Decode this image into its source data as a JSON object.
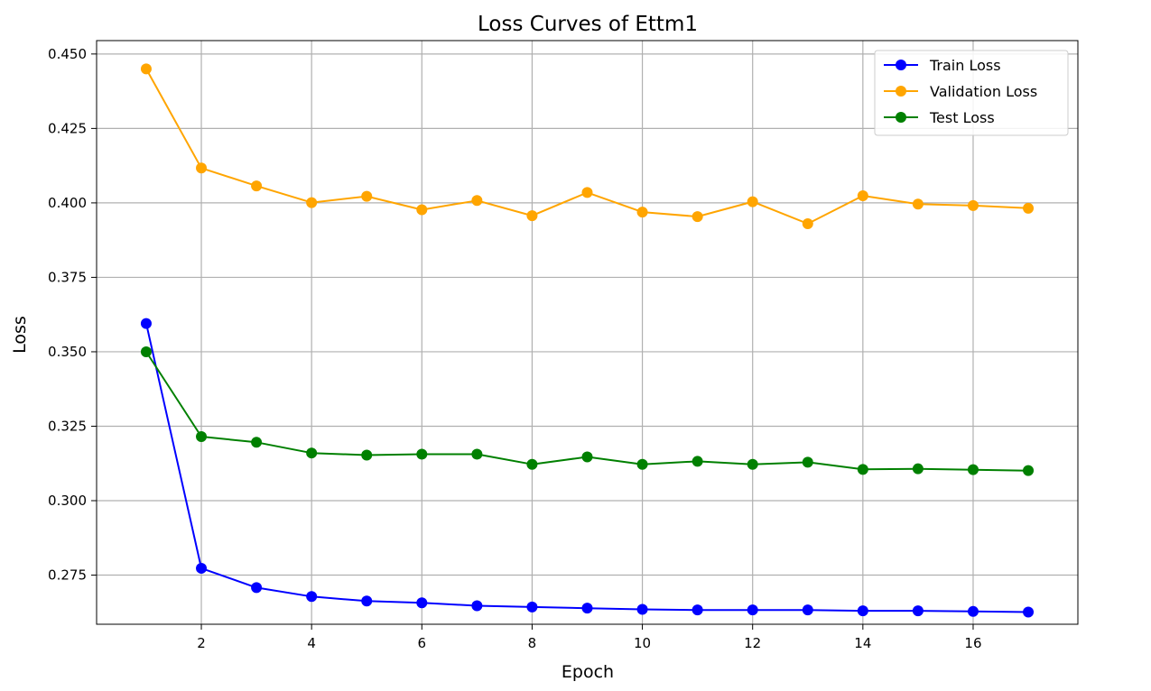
{
  "chart_data": {
    "type": "line",
    "title": "Loss Curves of Ettm1",
    "xlabel": "Epoch",
    "ylabel": "Loss",
    "x": [
      1,
      2,
      3,
      4,
      5,
      6,
      7,
      8,
      9,
      10,
      11,
      12,
      13,
      14,
      15,
      16,
      17
    ],
    "xticks": [
      2,
      4,
      6,
      8,
      10,
      12,
      14,
      16
    ],
    "xtick_labels": [
      "2",
      "4",
      "6",
      "8",
      "10",
      "12",
      "14",
      "16"
    ],
    "yticks": [
      0.275,
      0.3,
      0.325,
      0.35,
      0.375,
      0.4,
      0.425,
      0.45
    ],
    "ytick_labels": [
      "0.275",
      "0.300",
      "0.325",
      "0.350",
      "0.375",
      "0.400",
      "0.425",
      "0.450"
    ],
    "xlim": [
      0.1,
      17.9
    ],
    "ylim": [
      0.2585,
      0.4545
    ],
    "grid": true,
    "legend_position": "top-right",
    "series": [
      {
        "name": "Train Loss",
        "color": "#0000ff",
        "marker": "circle",
        "values": [
          0.3595,
          0.2773,
          0.2708,
          0.2678,
          0.2663,
          0.2657,
          0.2647,
          0.2643,
          0.2639,
          0.2635,
          0.2633,
          0.2633,
          0.2633,
          0.263,
          0.263,
          0.2628,
          0.2626
        ]
      },
      {
        "name": "Validation Loss",
        "color": "#ffa500",
        "marker": "circle",
        "values": [
          0.445,
          0.4117,
          0.4057,
          0.4001,
          0.4022,
          0.3977,
          0.4008,
          0.3957,
          0.4035,
          0.3969,
          0.3954,
          0.4004,
          0.393,
          0.4024,
          0.3996,
          0.3991,
          0.3982
        ]
      },
      {
        "name": "Test Loss",
        "color": "#008000",
        "marker": "circle",
        "values": [
          0.35,
          0.3215,
          0.3196,
          0.316,
          0.3153,
          0.3156,
          0.3156,
          0.3122,
          0.3147,
          0.3122,
          0.3132,
          0.3122,
          0.3129,
          0.3105,
          0.3107,
          0.3104,
          0.3101
        ]
      }
    ]
  }
}
